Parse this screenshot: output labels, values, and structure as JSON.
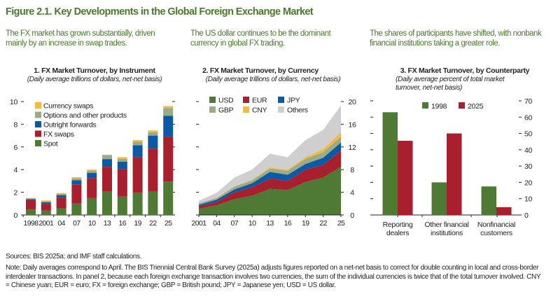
{
  "figure_title": "Figure 2.1. Key Developments in the Global Foreign Exchange Market",
  "descriptions": [
    "The FX market has grown substantially, driven mainly by an increase in swap trades.",
    "The US dollar continues to be the dominant currency in global FX trading.",
    "The shares of participants have shifted, with nonbank financial institutions taking a greater role."
  ],
  "sources": "Sources: BIS 2025a; and IMF staff calculations.",
  "note": "Note: Daily averages correspond to April. The BIS Triennial Central Bank Survey (2025a) adjusts figures reported on a net-net basis to correct for double counting in local and cross-border interdealer transactions. In panel 2, because each foreign exchange transaction involves two currencies, the sum of the individual currencies is twice that of the total turnover involved. CNY = Chinese yuan; EUR = euro; FX = foreign exchange; GBP = British pound; JPY = Japanese yen; USD = US dollar.",
  "chart_data": [
    {
      "type": "bar",
      "stacked": true,
      "title": "1. FX Market Turnover, by Instrument",
      "subtitle": "(Daily average trillions of dollars, net-net basis)",
      "categories": [
        "1998",
        "2001",
        "04",
        "07",
        "10",
        "13",
        "16",
        "19",
        "22",
        "25"
      ],
      "ylim": [
        0,
        10
      ],
      "yticks": [
        0,
        2,
        4,
        6,
        8,
        10
      ],
      "legend_position": "top-left",
      "series": [
        {
          "name": "Spot",
          "color": "#4e7a35",
          "values": [
            0.5,
            0.38,
            0.58,
            1.0,
            1.49,
            2.05,
            1.62,
            1.98,
            2.1,
            2.95
          ]
        },
        {
          "name": "FX swaps",
          "color": "#a81f2d",
          "values": [
            0.8,
            0.6,
            0.95,
            1.7,
            1.76,
            2.2,
            2.4,
            3.12,
            3.75,
            3.97
          ]
        },
        {
          "name": "Outright forwards",
          "color": "#0b5aa5",
          "values": [
            0.1,
            0.13,
            0.22,
            0.36,
            0.47,
            0.68,
            0.68,
            1.05,
            1.15,
            1.83
          ]
        },
        {
          "name": "Options and other products",
          "color": "#9aab86",
          "values": [
            0.07,
            0.1,
            0.12,
            0.17,
            0.17,
            0.34,
            0.25,
            0.3,
            0.3,
            0.68
          ]
        },
        {
          "name": "Currency swaps",
          "color": "#f3b941",
          "values": [
            0.03,
            0.07,
            0.06,
            0.1,
            0.11,
            0.05,
            0.15,
            0.15,
            0.15,
            0.17
          ]
        }
      ]
    },
    {
      "type": "area",
      "stacked": true,
      "title": "2. FX Market Turnover, by Currency",
      "subtitle": "(Daily average trillions of dollars, net-net basis)",
      "x": [
        "2001",
        "04",
        "07",
        "10",
        "13",
        "16",
        "19",
        "22",
        "25"
      ],
      "ylim": [
        0,
        20
      ],
      "yticks": [
        0,
        4,
        8,
        12,
        16,
        20
      ],
      "legend_position": "top-left",
      "series": [
        {
          "name": "USD",
          "color": "#4e7a35",
          "values": [
            1.1,
            1.7,
            2.8,
            3.4,
            4.6,
            4.4,
            5.8,
            6.6,
            8.5
          ]
        },
        {
          "name": "EUR",
          "color": "#a81f2d",
          "values": [
            0.45,
            0.6,
            1.2,
            1.5,
            1.8,
            1.6,
            2.2,
            2.2,
            2.9
          ]
        },
        {
          "name": "JPY",
          "color": "#0b5aa5",
          "values": [
            0.25,
            0.4,
            0.5,
            0.7,
            1.2,
            1.1,
            1.0,
            1.3,
            1.4
          ]
        },
        {
          "name": "GBP",
          "color": "#9aab86",
          "values": [
            0.25,
            0.3,
            0.5,
            0.5,
            0.6,
            0.7,
            0.9,
            1.0,
            1.0
          ]
        },
        {
          "name": "CNY",
          "color": "#f3b941",
          "values": [
            0.01,
            0.02,
            0.05,
            0.1,
            0.2,
            0.2,
            0.3,
            0.5,
            0.8
          ]
        },
        {
          "name": "Others",
          "color": "#cfcfd1",
          "values": [
            0.44,
            0.88,
            1.55,
            1.8,
            2.4,
            2.2,
            3.0,
            3.4,
            4.7
          ]
        }
      ]
    },
    {
      "type": "bar",
      "title": "3. FX Market Turnover, by Counterparty",
      "subtitle": [
        "(Daily average percent of total market",
        "turnover, net-net basis)"
      ],
      "categories": [
        [
          "Reporting",
          "dealers"
        ],
        [
          "Other financial",
          "institutions"
        ],
        [
          "Nonfinancial",
          "customers"
        ]
      ],
      "ylim": [
        0,
        70
      ],
      "yticks": [
        0,
        10,
        20,
        30,
        40,
        50,
        60,
        70
      ],
      "legend_position": "top",
      "series": [
        {
          "name": "1998",
          "color": "#4e7a35",
          "values": [
            63,
            20,
            17.5
          ]
        },
        {
          "name": "2025",
          "color": "#a81f2d",
          "values": [
            45.5,
            50,
            4.8
          ]
        }
      ]
    }
  ]
}
